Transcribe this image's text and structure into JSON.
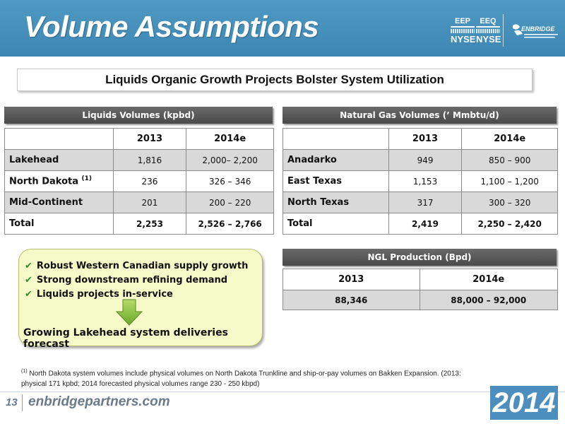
{
  "header": {
    "title": "Volume Assumptions",
    "tickers": [
      {
        "symbol": "EEP",
        "exchange": "NYSE"
      },
      {
        "symbol": "EEQ",
        "exchange": "NYSE"
      }
    ],
    "logo_text": "ENBRIDGE"
  },
  "subtitle": "Liquids Organic Growth Projects Bolster System Utilization",
  "liquids": {
    "title": "Liquids Volumes (kpbd)",
    "headers": [
      "2013",
      "2014e"
    ],
    "rows": [
      {
        "label": "Lakehead",
        "sup": "",
        "v2013": "1,816",
        "v2014": "2,000– 2,200"
      },
      {
        "label": "North Dakota ",
        "sup": "(1)",
        "v2013": "236",
        "v2014": "326 – 346"
      },
      {
        "label": "Mid-Continent",
        "sup": "",
        "v2013": "201",
        "v2014": "200 – 220"
      },
      {
        "label": "Total",
        "sup": "",
        "v2013": "2,253",
        "v2014": "2,526 – 2,766"
      }
    ]
  },
  "natgas": {
    "title": "Natural Gas Volumes (’ Mmbtu/d)",
    "headers": [
      "2013",
      "2014e"
    ],
    "rows": [
      {
        "label": "Anadarko",
        "v2013": "949",
        "v2014": "850 – 900"
      },
      {
        "label": "East Texas",
        "v2013": "1,153",
        "v2014": "1,100 – 1,200"
      },
      {
        "label": "North Texas",
        "v2013": "317",
        "v2014": "300 – 320"
      },
      {
        "label": "Total",
        "v2013": "2,419",
        "v2014": "2,250 – 2,420"
      }
    ]
  },
  "ngl": {
    "title": "NGL Production (Bpd)",
    "headers": [
      "2013",
      "2014e"
    ],
    "values": [
      "88,346",
      "88,000 – 92,000"
    ]
  },
  "callout": {
    "bullets": [
      "Robust Western Canadian supply growth",
      "Strong downstream refining demand",
      "Liquids projects in-service"
    ],
    "conclusion": "Growing Lakehead system deliveries forecast"
  },
  "footnote": {
    "marker": "(1)",
    "text": " North Dakota system volumes include physical volumes on North Dakota Trunkline and ship-or-pay volumes on Bakken Expansion. (2013: physical 171 kpbd; 2014 forecasted physical volumes range 230 - 250 kbpd)"
  },
  "footer": {
    "page": "13",
    "url": "enbridgepartners.com",
    "year": "2014"
  },
  "colors": {
    "header_blue": "#4f9ac4",
    "table_title_gray": "#555555",
    "callout_fill": "#f6f9c8",
    "arrow_green": "#8cc63f"
  }
}
